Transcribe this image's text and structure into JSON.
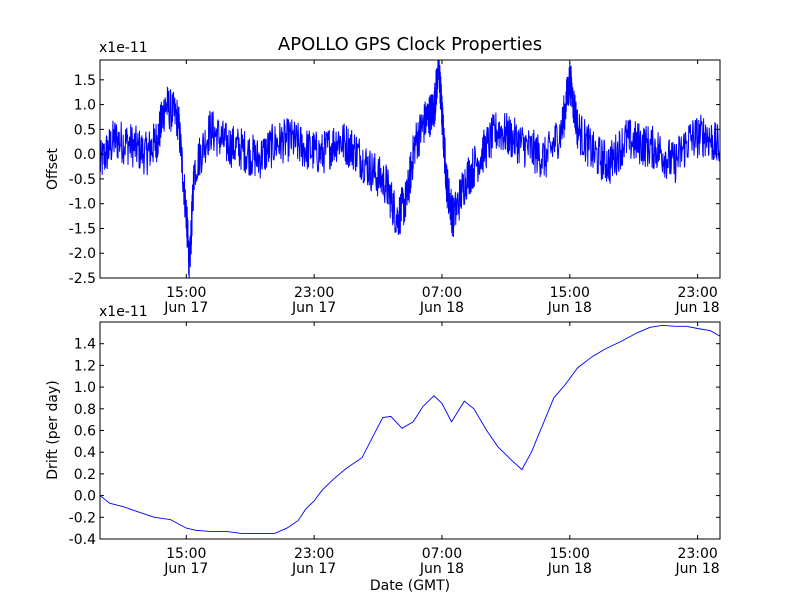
{
  "title": "APOLLO GPS Clock Properties",
  "colors": {
    "line": "#0000ff",
    "axes": "#000000",
    "background": "#ffffff"
  },
  "chart_data": [
    {
      "type": "line",
      "name": "offset",
      "ylabel": "Offset",
      "xlabel": "",
      "exponent_label": "x1e-11",
      "ylim": [
        -2.5,
        1.9
      ],
      "yticks": [
        -2.5,
        -2.0,
        -1.5,
        -1.0,
        -0.5,
        0.0,
        0.5,
        1.0,
        1.5
      ],
      "ytick_labels": [
        "-2.5",
        "-2.0",
        "-1.5",
        "-1.0",
        "-0.5",
        "0.0",
        "0.5",
        "1.0",
        "1.5"
      ],
      "xlim_hours": [
        9.6,
        48.4
      ],
      "xticks_hours": [
        15,
        23,
        31,
        39,
        47
      ],
      "xtick_labels": [
        [
          "15:00",
          "Jun 17"
        ],
        [
          "23:00",
          "Jun 17"
        ],
        [
          "07:00",
          "Jun 18"
        ],
        [
          "15:00",
          "Jun 18"
        ],
        [
          "23:00",
          "Jun 18"
        ]
      ],
      "x_hours": [
        9.6,
        10.5,
        11.5,
        12.5,
        13.2,
        13.7,
        14.5,
        15.0,
        15.2,
        15.5,
        16.5,
        17.5,
        18.5,
        19.5,
        20.5,
        21.5,
        22.5,
        23.5,
        24.5,
        25.5,
        26.5,
        27.5,
        28.2,
        28.8,
        29.3,
        30.0,
        30.5,
        30.8,
        31.0,
        31.3,
        31.7,
        32.5,
        33.5,
        34.5,
        35.5,
        36.5,
        37.5,
        38.5,
        39.0,
        39.5,
        40.5,
        41.5,
        42.5,
        43.5,
        44.5,
        45.5,
        46.5,
        47.5,
        48.4
      ],
      "y": [
        -0.2,
        0.3,
        0.2,
        0.0,
        0.3,
        1.0,
        0.7,
        -1.2,
        -2.3,
        -0.3,
        0.5,
        0.2,
        0.1,
        -0.1,
        0.2,
        0.3,
        0.1,
        0.0,
        0.3,
        0.1,
        -0.3,
        -0.6,
        -1.3,
        -0.9,
        0.2,
        0.7,
        0.9,
        1.8,
        0.8,
        -0.6,
        -1.3,
        -0.5,
        0.0,
        0.5,
        0.3,
        0.1,
        -0.1,
        0.5,
        1.5,
        0.5,
        0.0,
        -0.2,
        0.3,
        0.2,
        0.1,
        -0.2,
        0.3,
        0.4,
        0.1
      ]
    },
    {
      "type": "line",
      "name": "drift",
      "ylabel": "Drift (per day)",
      "xlabel": "Date (GMT)",
      "exponent_label": "x1e-11",
      "ylim": [
        -0.4,
        1.6
      ],
      "yticks": [
        -0.4,
        -0.2,
        0.0,
        0.2,
        0.4,
        0.6,
        0.8,
        1.0,
        1.2,
        1.4
      ],
      "ytick_labels": [
        "-0.4",
        "-0.2",
        "0.0",
        "0.2",
        "0.4",
        "0.6",
        "0.8",
        "1.0",
        "1.2",
        "1.4"
      ],
      "xlim_hours": [
        9.6,
        48.4
      ],
      "xticks_hours": [
        15,
        23,
        31,
        39,
        47
      ],
      "xtick_labels": [
        [
          "15:00",
          "Jun 17"
        ],
        [
          "23:00",
          "Jun 17"
        ],
        [
          "07:00",
          "Jun 18"
        ],
        [
          "15:00",
          "Jun 18"
        ],
        [
          "23:00",
          "Jun 18"
        ]
      ],
      "x_hours": [
        9.6,
        10.2,
        11.0,
        12.0,
        13.0,
        14.0,
        15.0,
        15.6,
        16.5,
        17.5,
        18.5,
        19.5,
        20.5,
        21.3,
        22.0,
        22.5,
        23.0,
        23.5,
        24.2,
        25.0,
        26.0,
        26.7,
        27.3,
        27.8,
        28.5,
        29.2,
        29.8,
        30.5,
        31.0,
        31.6,
        32.4,
        33.0,
        33.8,
        34.5,
        35.4,
        36.0,
        36.6,
        37.3,
        38.0,
        38.7,
        39.5,
        40.4,
        41.2,
        42.2,
        43.2,
        44.0,
        44.8,
        45.6,
        46.3,
        47.0,
        47.8,
        48.4
      ],
      "y": [
        0.0,
        -0.07,
        -0.1,
        -0.15,
        -0.2,
        -0.22,
        -0.3,
        -0.32,
        -0.33,
        -0.33,
        -0.35,
        -0.35,
        -0.35,
        -0.3,
        -0.23,
        -0.12,
        -0.05,
        0.05,
        0.15,
        0.25,
        0.35,
        0.55,
        0.72,
        0.73,
        0.62,
        0.68,
        0.82,
        0.92,
        0.85,
        0.68,
        0.87,
        0.8,
        0.6,
        0.45,
        0.32,
        0.24,
        0.4,
        0.65,
        0.9,
        1.02,
        1.18,
        1.28,
        1.35,
        1.42,
        1.5,
        1.55,
        1.57,
        1.56,
        1.56,
        1.54,
        1.52,
        1.47
      ]
    }
  ]
}
